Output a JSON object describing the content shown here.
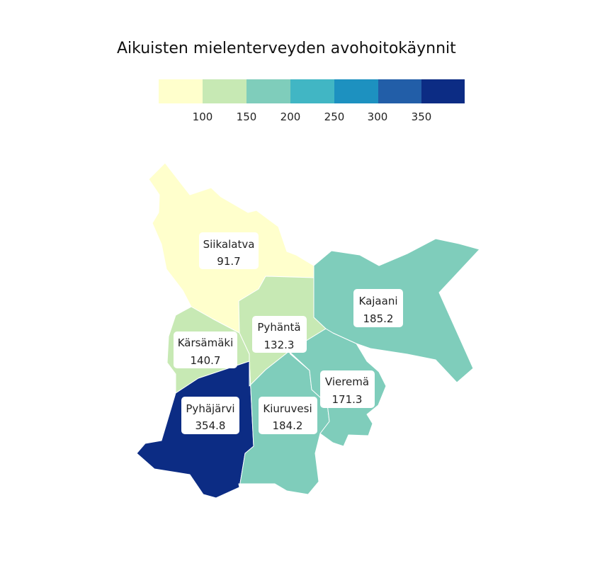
{
  "title": "Aikuisten mielenterveyden avohoitokäynnit",
  "legend": {
    "colors": [
      "#ffffcc",
      "#c7e9b4",
      "#7fcdbb",
      "#41b6c4",
      "#1d91c0",
      "#225ea8",
      "#0c2c84"
    ],
    "ticks": [
      "100",
      "150",
      "200",
      "250",
      "300",
      "350"
    ]
  },
  "regions": [
    {
      "id": "siikalatva",
      "name": "Siikalatva",
      "value": "91.7",
      "color": "#ffffcc"
    },
    {
      "id": "karsamaki",
      "name": "Kärsämäki",
      "value": "140.7",
      "color": "#c7e9b4"
    },
    {
      "id": "pyhanta",
      "name": "Pyhäntä",
      "value": "132.3",
      "color": "#c7e9b4"
    },
    {
      "id": "kajaani",
      "name": "Kajaani",
      "value": "185.2",
      "color": "#7fcdbb"
    },
    {
      "id": "vierema",
      "name": "Vieremä",
      "value": "171.3",
      "color": "#7fcdbb"
    },
    {
      "id": "kiuruvesi",
      "name": "Kiuruvesi",
      "value": "184.2",
      "color": "#7fcdbb"
    },
    {
      "id": "pyhajarvi",
      "name": "Pyhäjärvi",
      "value": "354.8",
      "color": "#0c2c84"
    }
  ]
}
